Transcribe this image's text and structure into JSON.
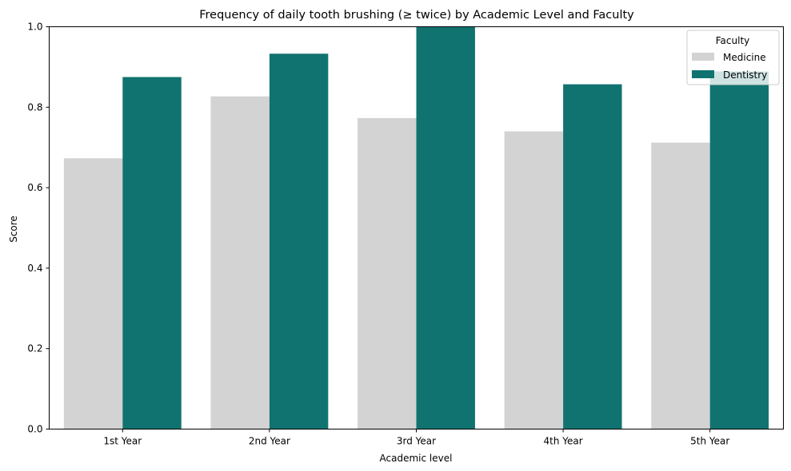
{
  "chart_data": {
    "type": "bar",
    "title": "Frequency of daily tooth brushing (≥ twice) by Academic Level and Faculty",
    "xlabel": "Academic level",
    "ylabel": "Score",
    "categories": [
      "1st Year",
      "2nd Year",
      "3rd Year",
      "4th Year",
      "5th Year"
    ],
    "ylim": [
      0,
      1.0
    ],
    "yticks": [
      0.0,
      0.2,
      0.4,
      0.6,
      0.8,
      1.0
    ],
    "ytick_labels": [
      "0.0",
      "0.2",
      "0.4",
      "0.6",
      "0.8",
      "1.0"
    ],
    "grid": false,
    "legend": {
      "title": "Faculty",
      "placement": "top-right"
    },
    "series": [
      {
        "name": "Medicine",
        "color": "#d3d3d3",
        "values": [
          0.673,
          0.827,
          0.773,
          0.74,
          0.712
        ]
      },
      {
        "name": "Dentistry",
        "color": "#117370",
        "values": [
          0.875,
          0.933,
          1.0,
          0.857,
          0.889
        ]
      }
    ]
  }
}
